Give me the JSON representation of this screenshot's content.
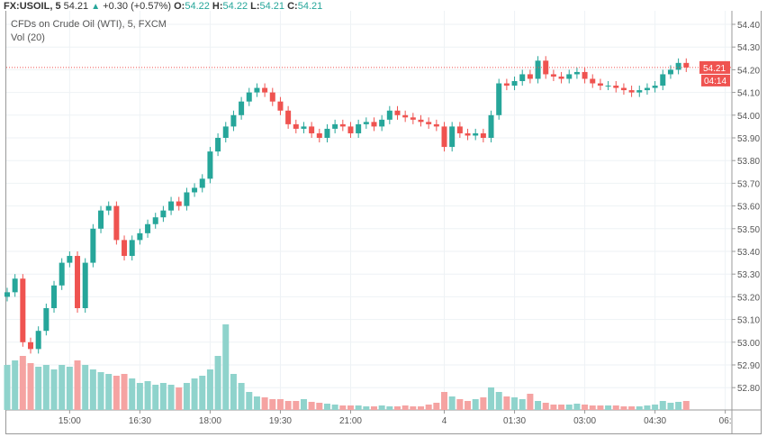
{
  "header": {
    "symbol": "FX:USOIL, 5",
    "price": "54.21",
    "change": "+0.30 (+0.57%)",
    "o_label": "O:",
    "o": "54.22",
    "h_label": "H:",
    "h": "54.22",
    "l_label": "L:",
    "l": "54.21",
    "c_label": "C:",
    "c": "54.21"
  },
  "legend": {
    "title": "CFDs on Crude Oil (WTI), 5, FXCM",
    "volume": "Vol (20)"
  },
  "price_badge": "54.21",
  "countdown_badge": "04:14",
  "colors": {
    "up": "#26a69a",
    "down": "#ef5350",
    "vol_up": "#8fd3cc",
    "vol_down": "#f5a3a2"
  },
  "chart_data": {
    "type": "candlestick",
    "y_ticks": [
      "54.40",
      "54.30",
      "54.20",
      "54.10",
      "54.00",
      "53.90",
      "53.80",
      "53.70",
      "53.60",
      "53.50",
      "53.40",
      "53.30",
      "53.20",
      "53.10",
      "53.00",
      "52.90",
      "52.80"
    ],
    "ylim": [
      52.75,
      54.45
    ],
    "x_ticks": [
      {
        "label": "15:00",
        "min": 80
      },
      {
        "label": "16:30",
        "min": 170
      },
      {
        "label": "18:00",
        "min": 260
      },
      {
        "label": "19:30",
        "min": 350
      },
      {
        "label": "21:00",
        "min": 440
      },
      {
        "label": "4",
        "min": 560
      },
      {
        "label": "01:30",
        "min": 650
      },
      {
        "label": "03:00",
        "min": 740
      },
      {
        "label": "04:30",
        "min": 830
      },
      {
        "label": "06:",
        "min": 920
      }
    ],
    "grid": true,
    "open_first": 53.2,
    "closes": [
      53.22,
      53.28,
      53.0,
      52.97,
      53.05,
      53.15,
      53.25,
      53.35,
      53.38,
      53.15,
      53.35,
      53.5,
      53.58,
      53.6,
      53.45,
      53.38,
      53.45,
      53.48,
      53.52,
      53.55,
      53.58,
      53.62,
      53.6,
      53.66,
      53.68,
      53.72,
      53.84,
      53.9,
      53.95,
      54.0,
      54.06,
      54.1,
      54.12,
      54.1,
      54.06,
      54.02,
      53.96,
      53.94,
      53.95,
      53.92,
      53.9,
      53.94,
      53.96,
      53.95,
      53.92,
      53.96,
      53.97,
      53.95,
      53.98,
      54.02,
      54.0,
      53.99,
      53.98,
      53.97,
      53.96,
      53.95,
      53.86,
      53.95,
      53.92,
      53.91,
      53.92,
      53.9,
      54.0,
      54.14,
      54.13,
      54.15,
      54.18,
      54.16,
      54.24,
      54.18,
      54.17,
      54.16,
      54.18,
      54.19,
      54.16,
      54.14,
      54.13,
      54.13,
      54.12,
      54.11,
      54.1,
      54.11,
      54.12,
      54.13,
      54.18,
      54.2,
      54.23,
      54.21
    ],
    "volumes": [
      50,
      55,
      60,
      52,
      48,
      50,
      45,
      50,
      48,
      55,
      50,
      45,
      42,
      40,
      38,
      40,
      35,
      30,
      32,
      28,
      30,
      28,
      25,
      30,
      35,
      38,
      45,
      60,
      95,
      40,
      30,
      20,
      15,
      14,
      12,
      12,
      10,
      10,
      12,
      9,
      8,
      7,
      6,
      5,
      5,
      5,
      4,
      4,
      5,
      4,
      4,
      5,
      4,
      4,
      6,
      8,
      20,
      15,
      12,
      10,
      12,
      14,
      25,
      20,
      15,
      14,
      12,
      18,
      10,
      8,
      6,
      6,
      6,
      7,
      6,
      5,
      5,
      5,
      5,
      4,
      4,
      4,
      5,
      6,
      10,
      8,
      9,
      10
    ],
    "current_price": 54.21
  }
}
